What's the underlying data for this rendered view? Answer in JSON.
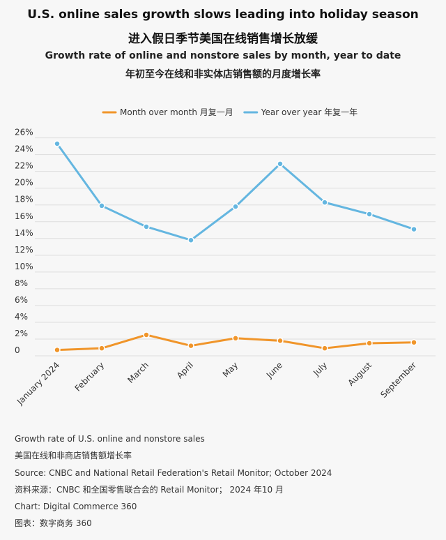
{
  "title_en": "U.S. online sales growth slows leading into holiday season",
  "title_zh": "进入假日季节美国在线销售增长放缓",
  "subtitle_en": "Growth rate of online and nonstore sales by month, year to date",
  "subtitle_zh": "年初至今在线和非实体店销售额的月度增长率",
  "chart_data": {
    "type": "line",
    "categories": [
      "January 2024",
      "February",
      "March",
      "April",
      "May",
      "June",
      "July",
      "August",
      "September"
    ],
    "series": [
      {
        "name": "Month over month 月复一月",
        "color": "#f0952a",
        "values": [
          0.7,
          0.9,
          2.5,
          1.2,
          2.1,
          1.8,
          0.9,
          1.5,
          1.6
        ]
      },
      {
        "name": "Year over year 年复一年",
        "color": "#64b6e0",
        "values": [
          25.3,
          17.9,
          15.4,
          13.8,
          17.8,
          22.9,
          18.3,
          16.9,
          15.1
        ]
      }
    ],
    "y_ticks": [
      "0",
      "2%",
      "4%",
      "6%",
      "8%",
      "10%",
      "12%",
      "14%",
      "16%",
      "18%",
      "20%",
      "22%",
      "24%",
      "26%"
    ],
    "ylim": [
      0,
      26
    ],
    "grid": true,
    "legend_position": "top-center"
  },
  "notes": [
    "Growth rate of U.S. online and nonstore sales",
    "美国在线和非商店销售额增长率",
    "Source: CNBC and National Retail Federation's Retail Monitor; October 2024",
    "资料来源：CNBC 和全国零售联合会的 Retail Monitor； 2024 年10 月",
    "Chart: Digital Commerce 360",
    "图表：数字商务 360"
  ]
}
